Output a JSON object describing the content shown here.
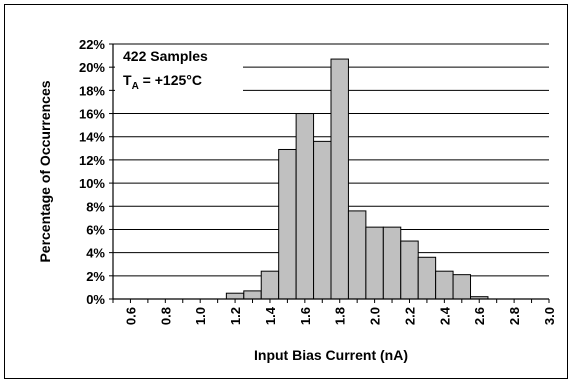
{
  "chart_data": {
    "type": "bar",
    "title": "",
    "xlabel": "Input Bias Current (nA)",
    "ylabel": "Percentage of Occurrences",
    "xlim": [
      0.5,
      3.0
    ],
    "ylim": [
      0,
      22
    ],
    "grid": true,
    "y_ticks": [
      "0%",
      "2%",
      "4%",
      "6%",
      "8%",
      "10%",
      "12%",
      "14%",
      "16%",
      "18%",
      "20%",
      "22%"
    ],
    "x_ticks": [
      "0.6",
      "0.8",
      "1.0",
      "1.2",
      "1.4",
      "1.6",
      "1.8",
      "2.0",
      "2.2",
      "2.4",
      "2.6",
      "2.8",
      "3.0"
    ],
    "bin_width": 0.1,
    "bins": [
      {
        "x": 1.2,
        "value": 0.5
      },
      {
        "x": 1.3,
        "value": 0.7
      },
      {
        "x": 1.4,
        "value": 2.4
      },
      {
        "x": 1.5,
        "value": 12.9
      },
      {
        "x": 1.6,
        "value": 16.0
      },
      {
        "x": 1.7,
        "value": 13.6
      },
      {
        "x": 1.8,
        "value": 20.7
      },
      {
        "x": 1.9,
        "value": 7.6
      },
      {
        "x": 2.0,
        "value": 6.2
      },
      {
        "x": 2.1,
        "value": 6.2
      },
      {
        "x": 2.2,
        "value": 5.0
      },
      {
        "x": 2.3,
        "value": 3.6
      },
      {
        "x": 2.4,
        "value": 2.4
      },
      {
        "x": 2.5,
        "value": 2.1
      },
      {
        "x": 2.6,
        "value": 0.2
      }
    ],
    "annotations": {
      "samples": "422 Samples",
      "temp_prefix": "T",
      "temp_sub": "A",
      "temp_suffix": " = +125°C"
    },
    "colors": {
      "bar_fill": "#c0c0c0",
      "bar_stroke": "#000000",
      "grid": "#000000"
    }
  }
}
